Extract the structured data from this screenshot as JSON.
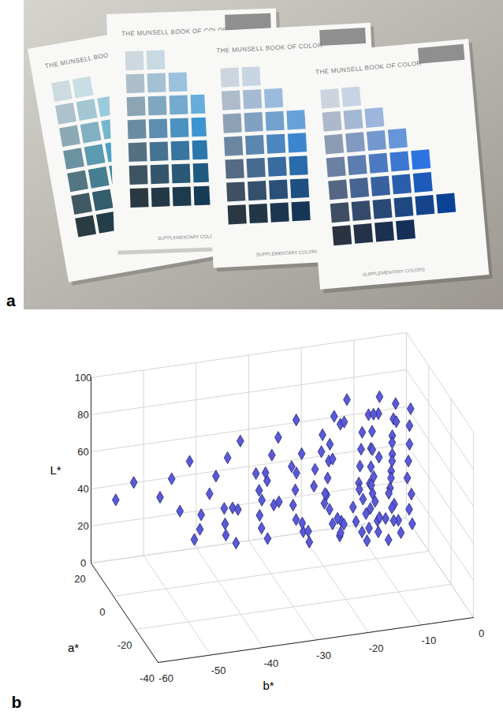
{
  "photo": {
    "panel_label": "a",
    "pages": [
      {
        "title": "THE MUNSELL BOOK OF COLOR"
      },
      {
        "title": "THE MUNSELL BOOK OF COLOR",
        "footer": "SUPPLEMENTARY COLORS"
      },
      {
        "title": "THE MUNSELL BOOK OF COLOR",
        "footer": "SUPPLEMENTARY COLORS"
      },
      {
        "title": "THE MUNSELL BOOK OF COLOR",
        "footer": "SUPPLEMENTARY COLORS"
      }
    ]
  },
  "chart_data": {
    "type": "scatter",
    "panel_label": "b",
    "x_label": "a*",
    "y_label": "b*",
    "z_label": "L*",
    "xlim": [
      -40,
      20
    ],
    "xticks": [
      -40,
      -20,
      0,
      20
    ],
    "ylim": [
      -60,
      0
    ],
    "yticks": [
      -60,
      -50,
      -40,
      -30,
      -20,
      -10,
      0
    ],
    "zlim": [
      0,
      100
    ],
    "zticks": [
      0,
      20,
      40,
      60,
      80,
      100
    ],
    "grid": true,
    "marker": "diamond",
    "color": "#5a5ad8",
    "x": [
      -8,
      -12,
      -15,
      -6,
      -11,
      -15,
      -18,
      -5,
      -10,
      -14,
      -18,
      -20,
      -5,
      -9,
      -13,
      -17,
      -20,
      -22,
      -4,
      -8,
      -12,
      -15,
      -18,
      -20,
      -21,
      -3,
      -7,
      -10,
      -13,
      -15,
      -16,
      -16,
      -2,
      -5,
      -8,
      -10,
      -11,
      -11,
      -1,
      -3,
      -5,
      -6,
      -3,
      -2,
      -2,
      0,
      1,
      -1,
      1,
      3,
      4,
      0,
      2,
      4,
      6,
      7,
      0,
      3,
      5,
      7,
      9,
      10,
      1,
      4,
      6,
      8,
      10,
      12,
      1,
      4,
      7,
      9,
      11,
      1,
      3,
      5,
      -12,
      -18,
      -11,
      -19,
      -26,
      -11,
      -19,
      -26,
      -32,
      -10,
      -18,
      -25,
      -31,
      -36,
      -9,
      -16,
      -23,
      -29,
      -34,
      -8,
      -14,
      -20,
      -25,
      -6,
      -11,
      -16,
      -20,
      -4,
      -8,
      -11,
      -7,
      -9,
      -6,
      -8,
      -9,
      -10,
      -5,
      -6,
      -7,
      -8,
      -8,
      -3,
      -4,
      -5
    ],
    "y": [
      -8,
      -14,
      -20,
      -8,
      -15,
      -22,
      -28,
      -8,
      -15,
      -22,
      -29,
      -35,
      -8,
      -15,
      -22,
      -29,
      -36,
      -42,
      -8,
      -15,
      -22,
      -29,
      -36,
      -43,
      -48,
      -8,
      -14,
      -21,
      -28,
      -35,
      -42,
      -48,
      -7,
      -13,
      -20,
      -26,
      -33,
      -39,
      -6,
      -12,
      -18,
      -24,
      -10,
      -16,
      -10,
      -18,
      -25,
      -11,
      -20,
      -28,
      -35,
      -11,
      -20,
      -29,
      -37,
      -44,
      -11,
      -21,
      -30,
      -39,
      -47,
      -54,
      -11,
      -21,
      -31,
      -40,
      -49,
      -57,
      -10,
      -19,
      -28,
      -37,
      -45,
      -8,
      -16,
      -23,
      -6,
      -10,
      -6,
      -11,
      -15,
      -6,
      -11,
      -16,
      -20,
      -6,
      -11,
      -16,
      -21,
      -25,
      -6,
      -11,
      -16,
      -20,
      -24,
      -5,
      -10,
      -14,
      -18,
      -5,
      -9,
      -13,
      -16,
      -4,
      -7,
      -10,
      -12,
      -18,
      -12,
      -20,
      -28,
      -35,
      -12,
      -21,
      -30,
      -38,
      -45,
      -10,
      -17,
      -24
    ],
    "z": [
      90,
      90,
      90,
      80,
      80,
      80,
      80,
      70,
      70,
      70,
      70,
      70,
      60,
      60,
      60,
      60,
      60,
      60,
      50,
      50,
      50,
      50,
      50,
      50,
      50,
      40,
      40,
      40,
      40,
      40,
      40,
      40,
      30,
      30,
      30,
      30,
      30,
      30,
      20,
      20,
      20,
      20,
      90,
      90,
      80,
      80,
      80,
      70,
      70,
      70,
      70,
      60,
      60,
      60,
      60,
      60,
      50,
      50,
      50,
      50,
      50,
      50,
      40,
      40,
      40,
      40,
      40,
      40,
      30,
      30,
      30,
      30,
      30,
      20,
      20,
      20,
      90,
      90,
      80,
      80,
      80,
      70,
      70,
      70,
      70,
      60,
      60,
      60,
      60,
      60,
      50,
      50,
      50,
      50,
      50,
      40,
      40,
      40,
      40,
      30,
      30,
      30,
      30,
      20,
      20,
      20,
      85,
      85,
      65,
      65,
      65,
      65,
      45,
      45,
      45,
      45,
      45,
      25,
      25,
      25
    ]
  }
}
